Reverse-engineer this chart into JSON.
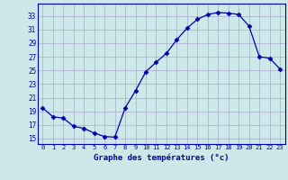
{
  "x": [
    0,
    1,
    2,
    3,
    4,
    5,
    6,
    7,
    8,
    9,
    10,
    11,
    12,
    13,
    14,
    15,
    16,
    17,
    18,
    19,
    20,
    21,
    22,
    23
  ],
  "y": [
    19.5,
    18.2,
    18.0,
    16.8,
    16.5,
    15.8,
    15.3,
    15.2,
    19.5,
    22.0,
    24.8,
    26.2,
    27.5,
    29.5,
    31.2,
    32.5,
    33.2,
    33.5,
    33.4,
    33.2,
    31.5,
    27.0,
    26.8,
    25.2
  ],
  "line_color": "#0000aa",
  "marker": "D",
  "marker_size": 2.5,
  "bg_color": "#cce8e8",
  "grid_color": "#aaaacc",
  "xlabel": "Graphe des températures (°c)",
  "xlabel_color": "#0000aa",
  "tick_color": "#0000aa",
  "yticks": [
    15,
    17,
    19,
    21,
    23,
    25,
    27,
    29,
    31,
    33
  ],
  "ylim": [
    14.2,
    34.8
  ],
  "xlim": [
    -0.5,
    23.5
  ]
}
